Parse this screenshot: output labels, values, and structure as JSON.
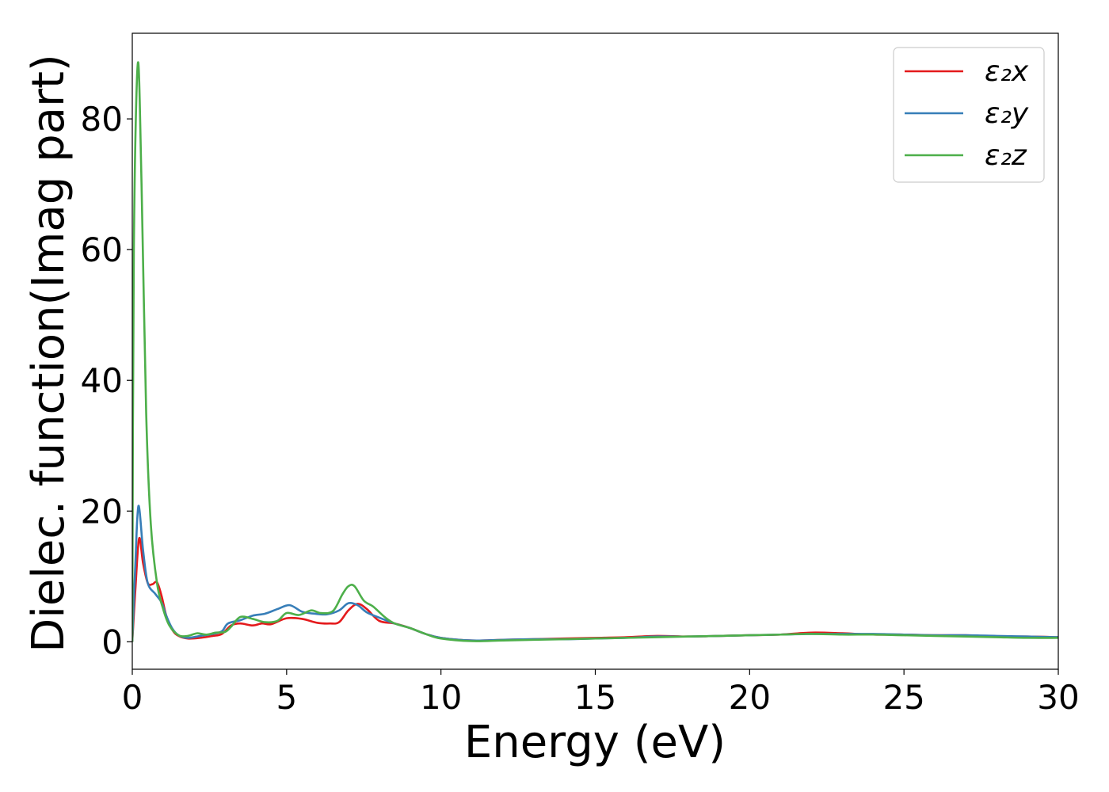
{
  "chart_data": {
    "type": "line",
    "title": "",
    "xlabel": "Energy (eV)",
    "ylabel": "Dielec. function(Imag part)",
    "xlim": [
      0,
      30
    ],
    "ylim": [
      -4.2,
      93.1
    ],
    "xticks": [
      0,
      5,
      10,
      15,
      20,
      25,
      30
    ],
    "xtick_labels": [
      "0",
      "5",
      "10",
      "15",
      "20",
      "25",
      "30"
    ],
    "yticks": [
      0,
      20,
      40,
      60,
      80
    ],
    "ytick_labels": [
      "0",
      "20",
      "40",
      "60",
      "80"
    ],
    "grid": false,
    "legend_position": "top-right",
    "series": [
      {
        "name": "ε₂x",
        "color": "#e41a1c",
        "x": [
          0,
          0.1,
          0.22,
          0.35,
          0.5,
          0.65,
          0.8,
          0.95,
          1.1,
          1.3,
          1.5,
          1.8,
          2.2,
          2.6,
          2.9,
          3.2,
          3.5,
          3.9,
          4.2,
          4.5,
          5.0,
          5.5,
          6.0,
          6.4,
          6.7,
          7.0,
          7.3,
          7.6,
          8.0,
          8.5,
          9.0,
          9.5,
          10,
          11,
          12,
          13,
          14,
          15,
          16,
          17,
          18,
          19,
          20,
          21,
          22,
          23,
          24,
          25,
          26,
          27,
          28,
          29,
          30
        ],
        "y": [
          0,
          8,
          15.8,
          12,
          9,
          8.8,
          9.1,
          7,
          4,
          1.8,
          0.9,
          0.5,
          0.6,
          0.9,
          1.2,
          2.5,
          2.8,
          2.5,
          2.8,
          2.7,
          3.6,
          3.5,
          2.9,
          2.8,
          3.0,
          4.8,
          5.8,
          5.0,
          3.2,
          2.8,
          2.1,
          1.2,
          0.6,
          0.2,
          0.3,
          0.4,
          0.5,
          0.6,
          0.7,
          0.9,
          0.8,
          0.9,
          1.0,
          1.1,
          1.4,
          1.3,
          1.1,
          1.1,
          1.0,
          1.0,
          0.8,
          0.8,
          0.7
        ]
      },
      {
        "name": "ε₂y",
        "color": "#377eb8",
        "x": [
          0,
          0.1,
          0.2,
          0.35,
          0.5,
          0.75,
          0.95,
          1.1,
          1.3,
          1.5,
          1.8,
          2.2,
          2.6,
          2.9,
          3.1,
          3.5,
          3.9,
          4.3,
          4.7,
          5.1,
          5.5,
          5.9,
          6.3,
          6.7,
          7.0,
          7.3,
          7.6,
          8.0,
          8.5,
          9.0,
          9.5,
          10,
          11,
          12,
          13,
          14,
          15,
          16,
          17,
          18,
          19,
          20,
          21,
          22,
          23,
          24,
          25,
          26,
          27,
          28,
          29,
          30
        ],
        "y": [
          0,
          12,
          20.8,
          14,
          9,
          7.3,
          6,
          4,
          2,
          1,
          0.6,
          0.9,
          1.2,
          1.6,
          2.8,
          3.3,
          4.0,
          4.3,
          5.0,
          5.6,
          4.6,
          4.3,
          4.2,
          4.8,
          5.9,
          5.6,
          4.5,
          3.7,
          2.8,
          2.1,
          1.2,
          0.6,
          0.2,
          0.3,
          0.4,
          0.4,
          0.5,
          0.6,
          0.8,
          0.8,
          0.9,
          1.0,
          1.1,
          1.2,
          1.2,
          1.2,
          1.1,
          1.0,
          1.0,
          0.9,
          0.8,
          0.7
        ]
      },
      {
        "name": "ε₂z",
        "color": "#4daf4a",
        "x": [
          0,
          0.05,
          0.18,
          0.3,
          0.45,
          0.6,
          0.8,
          1.0,
          1.2,
          1.5,
          1.8,
          2.1,
          2.4,
          2.7,
          3.0,
          3.2,
          3.5,
          3.9,
          4.3,
          4.7,
          5.0,
          5.4,
          5.8,
          6.1,
          6.5,
          6.8,
          7.0,
          7.2,
          7.5,
          7.8,
          8.2,
          8.5,
          9.0,
          9.5,
          10,
          11,
          12,
          13,
          14,
          15,
          16,
          17,
          18,
          19,
          20,
          21,
          22,
          23,
          24,
          25,
          26,
          27,
          28,
          29,
          30
        ],
        "y": [
          0,
          60,
          88.5,
          70,
          35,
          18,
          9,
          5,
          2.5,
          1,
          0.9,
          1.3,
          1.1,
          1.4,
          1.5,
          2.3,
          3.8,
          3.5,
          3.0,
          3.2,
          4.4,
          4.1,
          4.8,
          4.4,
          4.7,
          7.2,
          8.5,
          8.5,
          6.3,
          5.4,
          3.7,
          2.8,
          2.1,
          1.2,
          0.5,
          0.1,
          0.2,
          0.3,
          0.4,
          0.5,
          0.6,
          0.7,
          0.8,
          0.9,
          1.0,
          1.1,
          1.2,
          1.1,
          1.1,
          1.0,
          0.9,
          0.8,
          0.7,
          0.6,
          0.6
        ]
      }
    ]
  }
}
